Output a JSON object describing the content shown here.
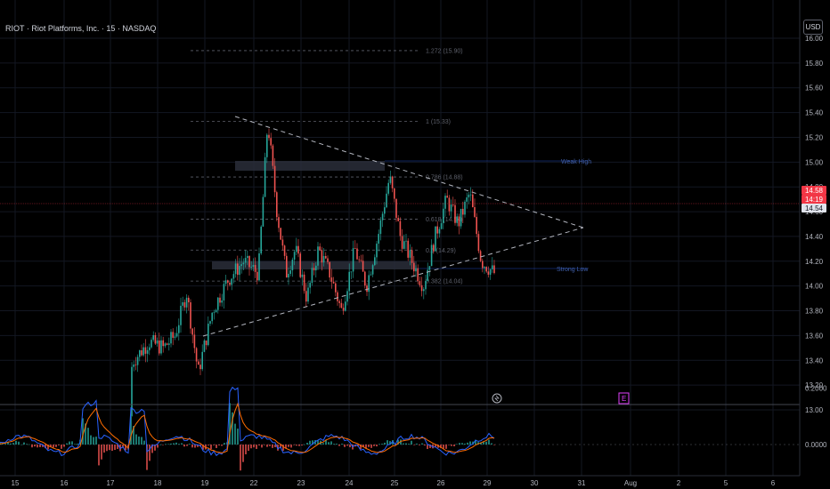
{
  "header": {
    "symbol_title": "RIOT · Riot Platforms, Inc. · 15 · NASDAQ",
    "currency": "USD"
  },
  "price_axis": {
    "ticks": [
      "16.00",
      "15.80",
      "15.60",
      "15.40",
      "15.20",
      "15.00",
      "14.80",
      "14.60",
      "14.40",
      "14.20",
      "14.00",
      "13.80",
      "13.60",
      "13.40",
      "13.20",
      "13.00"
    ],
    "last_price": "14.58",
    "countdown": "14:19",
    "secondary_price": "14.54"
  },
  "indicator_axis": {
    "ticks": [
      "0.2000",
      "0.0000"
    ]
  },
  "time_axis": {
    "ticks": [
      "15",
      "16",
      "17",
      "18",
      "19",
      "22",
      "23",
      "24",
      "25",
      "26",
      "29",
      "30",
      "31",
      "Aug",
      "2",
      "5",
      "6"
    ]
  },
  "fib_levels": [
    {
      "label": "1.272 (15.90)",
      "value": 15.9
    },
    {
      "label": "1 (15.33)",
      "value": 15.33
    },
    {
      "label": "0.786 (14.88)",
      "value": 14.88
    },
    {
      "label": "0.618 (14.54)",
      "value": 14.54
    },
    {
      "label": "0.5 (14.29)",
      "value": 14.29
    },
    {
      "label": "0.382 (14.04)",
      "value": 14.04
    }
  ],
  "annotations": {
    "weak_high": "Weak High",
    "strong_low": "Strong Low",
    "earnings_marker": "E"
  },
  "colors": {
    "up": "#26a69a",
    "down": "#ef5350",
    "macd": "#2962ff",
    "signal": "#ff6d00",
    "last_price_bg": "#f23645"
  },
  "chart_data": {
    "type": "candlestick",
    "ylim": [
      12.92,
      16.02
    ],
    "close_path": [
      {
        "x": "17",
        "y": 12.95
      },
      {
        "x": "17",
        "y": 13.4
      },
      {
        "x": "17",
        "y": 13.55
      },
      {
        "x": "18",
        "y": 13.5
      },
      {
        "x": "18",
        "y": 13.6
      },
      {
        "x": "18",
        "y": 13.95
      },
      {
        "x": "18",
        "y": 13.3
      },
      {
        "x": "19",
        "y": 13.8
      },
      {
        "x": "19",
        "y": 14.05
      },
      {
        "x": "19",
        "y": 14.2
      },
      {
        "x": "22",
        "y": 14.1
      },
      {
        "x": "22",
        "y": 15.33
      },
      {
        "x": "22",
        "y": 14.6
      },
      {
        "x": "22",
        "y": 14.1
      },
      {
        "x": "22",
        "y": 14.3
      },
      {
        "x": "23",
        "y": 13.9
      },
      {
        "x": "23",
        "y": 14.3
      },
      {
        "x": "23",
        "y": 14.1
      },
      {
        "x": "23",
        "y": 13.8
      },
      {
        "x": "24",
        "y": 14.3
      },
      {
        "x": "24",
        "y": 14.0
      },
      {
        "x": "24",
        "y": 14.4
      },
      {
        "x": "24",
        "y": 14.88
      },
      {
        "x": "25",
        "y": 14.4
      },
      {
        "x": "25",
        "y": 14.2
      },
      {
        "x": "25",
        "y": 14.0
      },
      {
        "x": "25",
        "y": 14.4
      },
      {
        "x": "26",
        "y": 14.7
      },
      {
        "x": "26",
        "y": 14.5
      },
      {
        "x": "26",
        "y": 14.75
      },
      {
        "x": "26",
        "y": 14.2
      },
      {
        "x": "29",
        "y": 14.1
      },
      {
        "x": "29",
        "y": 14.5
      },
      {
        "x": "29",
        "y": 14.58
      }
    ],
    "macd_ylim": [
      -0.05,
      0.28
    ]
  }
}
